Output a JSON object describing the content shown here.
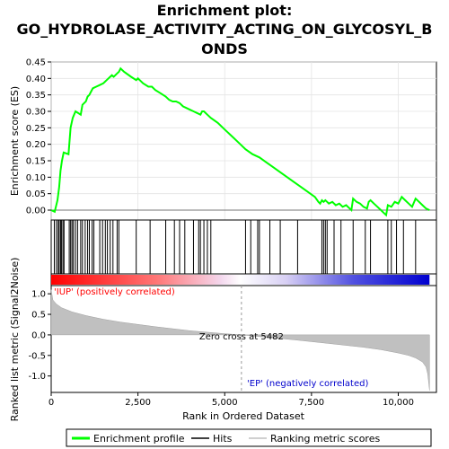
{
  "chart_data": {
    "type": "line",
    "title_lines": [
      "Enrichment plot:",
      "GO_HYDROLASE_ACTIVITY_ACTING_ON_GLYCOSYL_B",
      "ONDS"
    ],
    "top_panel": {
      "ylabel": "Enrichment score (ES)",
      "ylim": [
        -0.03,
        0.45
      ],
      "yticks": [
        0.0,
        0.05,
        0.1,
        0.15,
        0.2,
        0.25,
        0.3,
        0.35,
        0.4,
        0.45
      ],
      "ytick_labels": [
        "0.00",
        "0.05",
        "0.10",
        "0.15",
        "0.20",
        "0.25",
        "0.30",
        "0.35",
        "0.40",
        "0.45"
      ],
      "es_curve": {
        "name": "Enrichment profile",
        "color": "#00ff00",
        "x": [
          0,
          100,
          180,
          230,
          270,
          310,
          360,
          500,
          560,
          620,
          700,
          850,
          900,
          1000,
          1050,
          1100,
          1150,
          1200,
          1300,
          1400,
          1500,
          1550,
          1600,
          1650,
          1700,
          1750,
          1800,
          1850,
          1900,
          1950,
          2000,
          2100,
          2300,
          2450,
          2500,
          2650,
          2800,
          2900,
          3000,
          3150,
          3300,
          3400,
          3500,
          3600,
          3700,
          3800,
          3900,
          4000,
          4100,
          4200,
          4300,
          4350,
          4400,
          4500,
          4600,
          4800,
          5000,
          5200,
          5400,
          5600,
          5800,
          6000,
          6200,
          6400,
          6600,
          6800,
          7000,
          7200,
          7400,
          7600,
          7700,
          7750,
          7800,
          7850,
          7900,
          7950,
          8000,
          8100,
          8200,
          8300,
          8400,
          8500,
          8600,
          8650,
          8700,
          8800,
          8900,
          9000,
          9100,
          9150,
          9200,
          9300,
          9400,
          9500,
          9600,
          9650,
          9700,
          9800,
          9900,
          10000,
          10100,
          10200,
          10300,
          10400,
          10500,
          10600,
          10700,
          10800,
          10900
        ],
        "y": [
          0.0,
          -0.005,
          0.03,
          0.07,
          0.12,
          0.15,
          0.175,
          0.17,
          0.25,
          0.28,
          0.3,
          0.29,
          0.32,
          0.33,
          0.345,
          0.35,
          0.36,
          0.37,
          0.375,
          0.38,
          0.385,
          0.39,
          0.395,
          0.4,
          0.405,
          0.41,
          0.405,
          0.41,
          0.415,
          0.42,
          0.43,
          0.42,
          0.405,
          0.395,
          0.4,
          0.385,
          0.375,
          0.375,
          0.365,
          0.355,
          0.345,
          0.335,
          0.33,
          0.33,
          0.325,
          0.315,
          0.31,
          0.305,
          0.3,
          0.295,
          0.29,
          0.3,
          0.3,
          0.29,
          0.28,
          0.265,
          0.245,
          0.225,
          0.205,
          0.185,
          0.17,
          0.16,
          0.145,
          0.13,
          0.115,
          0.1,
          0.085,
          0.07,
          0.055,
          0.04,
          0.025,
          0.02,
          0.03,
          0.025,
          0.03,
          0.025,
          0.02,
          0.025,
          0.015,
          0.02,
          0.01,
          0.015,
          0.005,
          0.0,
          0.035,
          0.025,
          0.02,
          0.01,
          0.005,
          0.025,
          0.03,
          0.02,
          0.01,
          0.0,
          -0.01,
          -0.015,
          0.015,
          0.01,
          0.025,
          0.02,
          0.04,
          0.03,
          0.02,
          0.01,
          0.035,
          0.025,
          0.015,
          0.005,
          0.0
        ]
      }
    },
    "hits_panel": {
      "legend": "Hits",
      "hit_positions": [
        90,
        150,
        200,
        230,
        270,
        300,
        340,
        370,
        520,
        560,
        600,
        640,
        700,
        760,
        850,
        900,
        980,
        1050,
        1100,
        1180,
        1230,
        1400,
        1480,
        1560,
        1620,
        1700,
        1780,
        1900,
        1950,
        2450,
        2850,
        3300,
        3550,
        3700,
        3850,
        4100,
        4250,
        4300,
        4400,
        4500,
        4600,
        5600,
        5750,
        5950,
        6000,
        6300,
        6600,
        7100,
        7800,
        7850,
        7900,
        7950,
        8150,
        8350,
        8700,
        9050,
        9200,
        9700,
        9800,
        9950,
        10150,
        10500
      ]
    },
    "gradient_bar": {
      "low_color": "#ff0000",
      "high_color": "#0000ff",
      "top_label": "'IUP' (positively correlated)",
      "bottom_label": "'EP' (negatively correlated)",
      "top_label_color": "#ff0000",
      "bottom_label_color": "#0000ff"
    },
    "metric_panel": {
      "ylabel": "Ranked list metric (Signal2Noise)",
      "ylim": [
        -1.4,
        1.2
      ],
      "yticks": [
        -1.0,
        -0.5,
        0.0,
        0.5,
        1.0
      ],
      "ytick_labels": [
        "-1.0",
        "-0.5",
        "0.0",
        "0.5",
        "1.0"
      ],
      "series_name": "Ranking metric scores",
      "series_color": "#c0c0c0",
      "zero_cross": 5482,
      "zero_cross_label": "Zero cross at 5482",
      "x": [
        0,
        50,
        150,
        300,
        600,
        1000,
        1500,
        2000,
        3000,
        4000,
        5000,
        5482,
        6000,
        7000,
        8000,
        9000,
        9500,
        10000,
        10300,
        10500,
        10700,
        10800,
        10850,
        10900
      ],
      "y": [
        1.1,
        0.85,
        0.75,
        0.66,
        0.56,
        0.47,
        0.38,
        0.31,
        0.2,
        0.1,
        0.03,
        0.0,
        -0.04,
        -0.12,
        -0.21,
        -0.3,
        -0.36,
        -0.44,
        -0.5,
        -0.56,
        -0.66,
        -0.78,
        -0.95,
        -1.35
      ]
    },
    "xaxis": {
      "xlabel": "Rank in Ordered Dataset",
      "xlim": [
        0,
        11100
      ],
      "xticks": [
        0,
        2500,
        5000,
        7500,
        10000
      ],
      "xtick_labels": [
        "0",
        "2,500",
        "5,000",
        "7,500",
        "10,000"
      ],
      "n_genes": 10900
    },
    "legend": {
      "placement": "bottom",
      "items": [
        {
          "label": "Enrichment profile",
          "color": "#00ff00"
        },
        {
          "label": "Hits",
          "color": "#000000"
        },
        {
          "label": "Ranking metric scores",
          "color": "#c0c0c0"
        }
      ]
    }
  }
}
